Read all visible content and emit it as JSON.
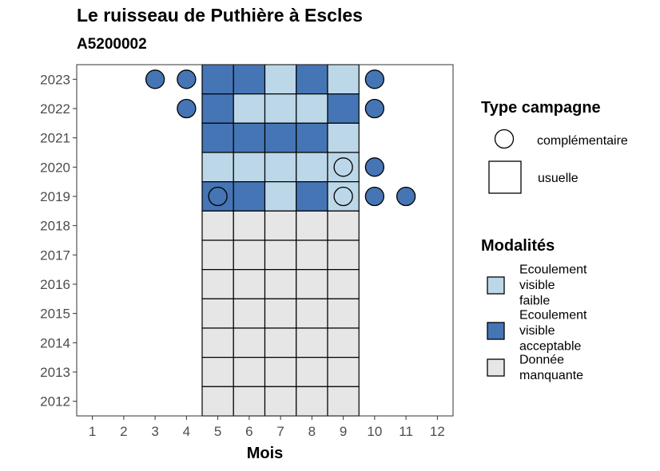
{
  "chart_data": {
    "type": "heatmap",
    "title": "Le ruisseau de Puthière à Escles",
    "subtitle": "A5200002",
    "xlabel": "Mois",
    "ylabel": "",
    "x_ticks": [
      "1",
      "2",
      "3",
      "4",
      "5",
      "6",
      "7",
      "8",
      "9",
      "10",
      "11",
      "12"
    ],
    "y_ticks": [
      "2012",
      "2013",
      "2014",
      "2015",
      "2016",
      "2017",
      "2018",
      "2019",
      "2020",
      "2021",
      "2022",
      "2023"
    ],
    "xlim": [
      0.5,
      12.5
    ],
    "ylim": [
      2011.5,
      2023.5
    ],
    "grid": false,
    "colors": {
      "faible": "#bcd7e8",
      "acceptable": "#4575b4",
      "manquante": "#e6e6e6"
    },
    "cells": [
      {
        "year": 2023,
        "month": 5,
        "mod": "acceptable"
      },
      {
        "year": 2023,
        "month": 6,
        "mod": "acceptable"
      },
      {
        "year": 2023,
        "month": 7,
        "mod": "faible"
      },
      {
        "year": 2023,
        "month": 8,
        "mod": "acceptable"
      },
      {
        "year": 2023,
        "month": 9,
        "mod": "faible"
      },
      {
        "year": 2022,
        "month": 5,
        "mod": "acceptable"
      },
      {
        "year": 2022,
        "month": 6,
        "mod": "faible"
      },
      {
        "year": 2022,
        "month": 7,
        "mod": "faible"
      },
      {
        "year": 2022,
        "month": 8,
        "mod": "faible"
      },
      {
        "year": 2022,
        "month": 9,
        "mod": "acceptable"
      },
      {
        "year": 2021,
        "month": 5,
        "mod": "acceptable"
      },
      {
        "year": 2021,
        "month": 6,
        "mod": "acceptable"
      },
      {
        "year": 2021,
        "month": 7,
        "mod": "acceptable"
      },
      {
        "year": 2021,
        "month": 8,
        "mod": "acceptable"
      },
      {
        "year": 2021,
        "month": 9,
        "mod": "faible"
      },
      {
        "year": 2020,
        "month": 5,
        "mod": "faible"
      },
      {
        "year": 2020,
        "month": 6,
        "mod": "faible"
      },
      {
        "year": 2020,
        "month": 7,
        "mod": "faible"
      },
      {
        "year": 2020,
        "month": 8,
        "mod": "faible"
      },
      {
        "year": 2020,
        "month": 9,
        "mod": "faible"
      },
      {
        "year": 2019,
        "month": 5,
        "mod": "acceptable"
      },
      {
        "year": 2019,
        "month": 6,
        "mod": "acceptable"
      },
      {
        "year": 2019,
        "month": 7,
        "mod": "faible"
      },
      {
        "year": 2019,
        "month": 8,
        "mod": "acceptable"
      },
      {
        "year": 2019,
        "month": 9,
        "mod": "faible"
      },
      {
        "year": 2018,
        "month": 5,
        "mod": "manquante"
      },
      {
        "year": 2018,
        "month": 6,
        "mod": "manquante"
      },
      {
        "year": 2018,
        "month": 7,
        "mod": "manquante"
      },
      {
        "year": 2018,
        "month": 8,
        "mod": "manquante"
      },
      {
        "year": 2018,
        "month": 9,
        "mod": "manquante"
      },
      {
        "year": 2017,
        "month": 5,
        "mod": "manquante"
      },
      {
        "year": 2017,
        "month": 6,
        "mod": "manquante"
      },
      {
        "year": 2017,
        "month": 7,
        "mod": "manquante"
      },
      {
        "year": 2017,
        "month": 8,
        "mod": "manquante"
      },
      {
        "year": 2017,
        "month": 9,
        "mod": "manquante"
      },
      {
        "year": 2016,
        "month": 5,
        "mod": "manquante"
      },
      {
        "year": 2016,
        "month": 6,
        "mod": "manquante"
      },
      {
        "year": 2016,
        "month": 7,
        "mod": "manquante"
      },
      {
        "year": 2016,
        "month": 8,
        "mod": "manquante"
      },
      {
        "year": 2016,
        "month": 9,
        "mod": "manquante"
      },
      {
        "year": 2015,
        "month": 5,
        "mod": "manquante"
      },
      {
        "year": 2015,
        "month": 6,
        "mod": "manquante"
      },
      {
        "year": 2015,
        "month": 7,
        "mod": "manquante"
      },
      {
        "year": 2015,
        "month": 8,
        "mod": "manquante"
      },
      {
        "year": 2015,
        "month": 9,
        "mod": "manquante"
      },
      {
        "year": 2014,
        "month": 5,
        "mod": "manquante"
      },
      {
        "year": 2014,
        "month": 6,
        "mod": "manquante"
      },
      {
        "year": 2014,
        "month": 7,
        "mod": "manquante"
      },
      {
        "year": 2014,
        "month": 8,
        "mod": "manquante"
      },
      {
        "year": 2014,
        "month": 9,
        "mod": "manquante"
      },
      {
        "year": 2013,
        "month": 5,
        "mod": "manquante"
      },
      {
        "year": 2013,
        "month": 6,
        "mod": "manquante"
      },
      {
        "year": 2013,
        "month": 7,
        "mod": "manquante"
      },
      {
        "year": 2013,
        "month": 8,
        "mod": "manquante"
      },
      {
        "year": 2013,
        "month": 9,
        "mod": "manquante"
      },
      {
        "year": 2012,
        "month": 5,
        "mod": "manquante"
      },
      {
        "year": 2012,
        "month": 6,
        "mod": "manquante"
      },
      {
        "year": 2012,
        "month": 7,
        "mod": "manquante"
      },
      {
        "year": 2012,
        "month": 8,
        "mod": "manquante"
      },
      {
        "year": 2012,
        "month": 9,
        "mod": "manquante"
      }
    ],
    "points": [
      {
        "year": 2023,
        "month": 3,
        "mod": "acceptable"
      },
      {
        "year": 2023,
        "month": 4,
        "mod": "acceptable"
      },
      {
        "year": 2023,
        "month": 10,
        "mod": "acceptable"
      },
      {
        "year": 2022,
        "month": 4,
        "mod": "acceptable"
      },
      {
        "year": 2022,
        "month": 10,
        "mod": "acceptable"
      },
      {
        "year": 2020,
        "month": 9,
        "mod": "faible"
      },
      {
        "year": 2020,
        "month": 10,
        "mod": "acceptable"
      },
      {
        "year": 2019,
        "month": 5,
        "mod": "acceptable"
      },
      {
        "year": 2019,
        "month": 9,
        "mod": "faible"
      },
      {
        "year": 2019,
        "month": 10,
        "mod": "acceptable"
      },
      {
        "year": 2019,
        "month": 11,
        "mod": "acceptable"
      }
    ],
    "legend": {
      "placement": "right",
      "type_title": "Type campagne",
      "type_items": [
        {
          "label": "complémentaire",
          "shape": "circle"
        },
        {
          "label": "usuelle",
          "shape": "square"
        }
      ],
      "mod_title": "Modalités",
      "mod_items": [
        {
          "key": "faible",
          "label_lines": [
            "Ecoulement",
            "visible",
            "faible"
          ]
        },
        {
          "key": "acceptable",
          "label_lines": [
            "Ecoulement",
            "visible",
            "acceptable"
          ]
        },
        {
          "key": "manquante",
          "label_lines": [
            "Donnée",
            "manquante"
          ]
        }
      ]
    }
  }
}
